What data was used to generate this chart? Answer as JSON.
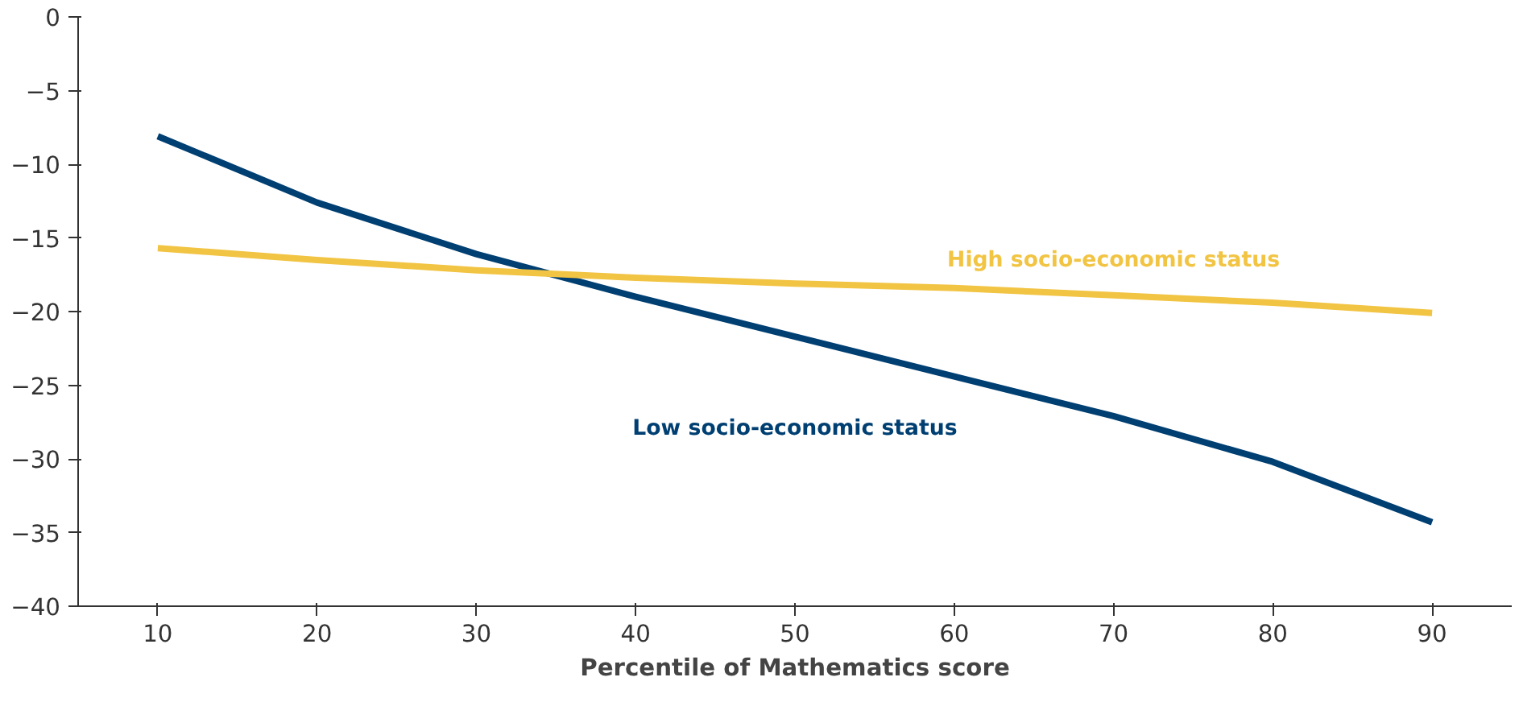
{
  "chart_data": {
    "type": "line",
    "xlabel": "Percentile of Mathematics score",
    "x": [
      10,
      20,
      30,
      40,
      50,
      60,
      70,
      80,
      90
    ],
    "series": [
      {
        "name": "Low socio-economic status",
        "color": "#003f72",
        "values": [
          -8.1,
          -12.6,
          -16.1,
          -19.0,
          -21.7,
          -24.4,
          -27.1,
          -30.2,
          -34.3
        ]
      },
      {
        "name": "High socio-economic status",
        "color": "#f2c443",
        "values": [
          -15.7,
          -16.5,
          -17.2,
          -17.7,
          -18.1,
          -18.4,
          -18.9,
          -19.4,
          -20.1
        ]
      }
    ],
    "xlim": [
      5,
      95
    ],
    "xticks": [
      10,
      20,
      30,
      40,
      50,
      60,
      70,
      80,
      90
    ],
    "ylim": [
      -40,
      0
    ],
    "yticks": [
      0,
      -5,
      -10,
      -15,
      -20,
      -25,
      -30,
      -35,
      -40
    ],
    "grid": false,
    "marker": "none",
    "line_style": "solid"
  }
}
